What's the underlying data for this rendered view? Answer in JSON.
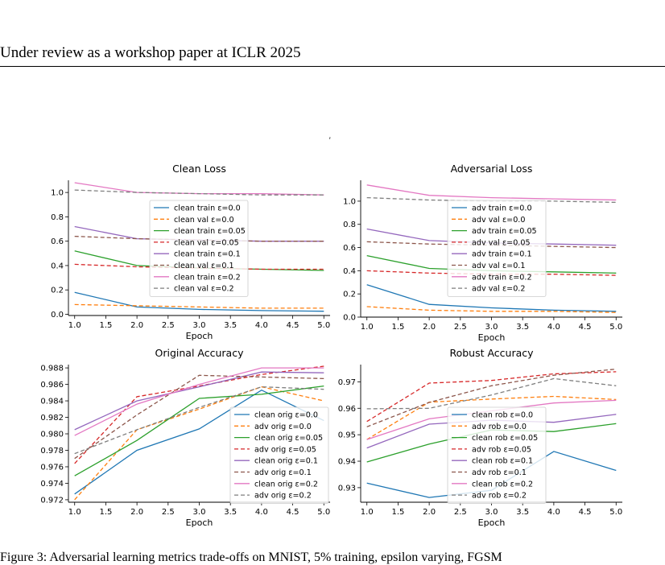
{
  "page": {
    "header": "Under review as a workshop paper at ICLR 2025",
    "caption": "Figure 3:  Adversarial learning metrics trade-offs on MNIST, 5% training, epsilon varying, FGSM"
  },
  "chart_data": [
    {
      "type": "line",
      "title": "Clean Loss",
      "xlabel": "Epoch",
      "x": [
        1,
        2,
        3,
        4,
        5
      ],
      "xlim": [
        0.9,
        5.1
      ],
      "xticks": [
        "1.0",
        "1.5",
        "2.0",
        "2.5",
        "3.0",
        "3.5",
        "4.0",
        "4.5",
        "5.0"
      ],
      "ylim": [
        -0.01,
        1.1
      ],
      "yticks": [
        "0.0",
        "0.2",
        "0.4",
        "0.6",
        "0.8",
        "1.0"
      ],
      "legend": "center",
      "series": [
        {
          "name": "clean train ε=0.0",
          "color": "#1f77b4",
          "dash": false,
          "values": [
            0.18,
            0.06,
            0.04,
            0.03,
            0.025
          ]
        },
        {
          "name": "clean val ε=0.0",
          "color": "#ff7f0e",
          "dash": true,
          "values": [
            0.08,
            0.07,
            0.06,
            0.05,
            0.05
          ]
        },
        {
          "name": "clean train ε=0.05",
          "color": "#2ca02c",
          "dash": false,
          "values": [
            0.52,
            0.4,
            0.38,
            0.37,
            0.36
          ]
        },
        {
          "name": "clean val ε=0.05",
          "color": "#d62728",
          "dash": true,
          "values": [
            0.41,
            0.39,
            0.38,
            0.37,
            0.37
          ]
        },
        {
          "name": "clean train ε=0.1",
          "color": "#9467bd",
          "dash": false,
          "values": [
            0.72,
            0.62,
            0.61,
            0.6,
            0.6
          ]
        },
        {
          "name": "clean val ε=0.1",
          "color": "#8c564b",
          "dash": true,
          "values": [
            0.64,
            0.62,
            0.61,
            0.6,
            0.6
          ]
        },
        {
          "name": "clean train ε=0.2",
          "color": "#e377c2",
          "dash": false,
          "values": [
            1.08,
            1.0,
            0.99,
            0.99,
            0.98
          ]
        },
        {
          "name": "clean val ε=0.2",
          "color": "#7f7f7f",
          "dash": true,
          "values": [
            1.02,
            1.0,
            0.99,
            0.98,
            0.98
          ]
        }
      ]
    },
    {
      "type": "line",
      "title": "Adversarial Loss",
      "xlabel": "Epoch",
      "x": [
        1,
        2,
        3,
        4,
        5
      ],
      "xlim": [
        0.9,
        5.1
      ],
      "xticks": [
        "1.0",
        "1.5",
        "2.0",
        "2.5",
        "3.0",
        "3.5",
        "4.0",
        "4.5",
        "5.0"
      ],
      "ylim": [
        0.0,
        1.18
      ],
      "yticks": [
        "0.0",
        "0.2",
        "0.4",
        "0.6",
        "0.8",
        "1.0"
      ],
      "legend": "center",
      "series": [
        {
          "name": "adv train ε=0.0",
          "color": "#1f77b4",
          "dash": false,
          "values": [
            0.28,
            0.11,
            0.08,
            0.06,
            0.05
          ]
        },
        {
          "name": "adv val ε=0.0",
          "color": "#ff7f0e",
          "dash": true,
          "values": [
            0.09,
            0.06,
            0.05,
            0.05,
            0.04
          ]
        },
        {
          "name": "adv train ε=0.05",
          "color": "#2ca02c",
          "dash": false,
          "values": [
            0.53,
            0.42,
            0.4,
            0.39,
            0.38
          ]
        },
        {
          "name": "adv val ε=0.05",
          "color": "#d62728",
          "dash": true,
          "values": [
            0.4,
            0.38,
            0.37,
            0.37,
            0.36
          ]
        },
        {
          "name": "adv train ε=0.1",
          "color": "#9467bd",
          "dash": false,
          "values": [
            0.76,
            0.66,
            0.64,
            0.63,
            0.62
          ]
        },
        {
          "name": "adv val ε=0.1",
          "color": "#8c564b",
          "dash": true,
          "values": [
            0.65,
            0.63,
            0.62,
            0.61,
            0.6
          ]
        },
        {
          "name": "adv train ε=0.2",
          "color": "#e377c2",
          "dash": false,
          "values": [
            1.14,
            1.05,
            1.03,
            1.02,
            1.01
          ]
        },
        {
          "name": "adv val ε=0.2",
          "color": "#7f7f7f",
          "dash": true,
          "values": [
            1.03,
            1.01,
            1.0,
            1.0,
            0.99
          ]
        }
      ]
    },
    {
      "type": "line",
      "title": "Original Accuracy",
      "xlabel": "Epoch",
      "x": [
        1,
        2,
        3,
        4,
        5
      ],
      "xlim": [
        0.9,
        5.1
      ],
      "xticks": [
        "1.0",
        "1.5",
        "2.0",
        "2.5",
        "3.0",
        "3.5",
        "4.0",
        "4.5",
        "5.0"
      ],
      "ylim": [
        0.9717,
        0.9884
      ],
      "yticks": [
        "0.972",
        "0.974",
        "0.976",
        "0.978",
        "0.980",
        "0.982",
        "0.984",
        "0.986",
        "0.988"
      ],
      "legend": "lower right",
      "series": [
        {
          "name": "clean orig ε=0.0",
          "color": "#1f77b4",
          "dash": false,
          "values": [
            0.9727,
            0.978,
            0.9806,
            0.9853,
            0.9816
          ]
        },
        {
          "name": "adv orig ε=0.0",
          "color": "#ff7f0e",
          "dash": true,
          "values": [
            0.972,
            0.9805,
            0.983,
            0.9857,
            0.984
          ]
        },
        {
          "name": "clean orig ε=0.05",
          "color": "#2ca02c",
          "dash": false,
          "values": [
            0.9749,
            0.9792,
            0.9843,
            0.9848,
            0.9858
          ]
        },
        {
          "name": "adv orig ε=0.05",
          "color": "#d62728",
          "dash": true,
          "values": [
            0.9764,
            0.9845,
            0.9858,
            0.9872,
            0.9882
          ]
        },
        {
          "name": "clean orig ε=0.1",
          "color": "#9467bd",
          "dash": false,
          "values": [
            0.9805,
            0.984,
            0.9857,
            0.9875,
            0.9874
          ]
        },
        {
          "name": "adv orig ε=0.1",
          "color": "#8c564b",
          "dash": true,
          "values": [
            0.977,
            0.9823,
            0.9871,
            0.9869,
            0.9867
          ]
        },
        {
          "name": "clean orig ε=0.2",
          "color": "#e377c2",
          "dash": false,
          "values": [
            0.9798,
            0.9836,
            0.986,
            0.988,
            0.988
          ]
        },
        {
          "name": "adv orig ε=0.2",
          "color": "#7f7f7f",
          "dash": true,
          "values": [
            0.9776,
            0.9805,
            0.9832,
            0.9857,
            0.9854
          ]
        }
      ]
    },
    {
      "type": "line",
      "title": "Robust Accuracy",
      "xlabel": "Epoch",
      "x": [
        1,
        2,
        3,
        4,
        5
      ],
      "xlim": [
        0.9,
        5.1
      ],
      "xticks": [
        "1.0",
        "1.5",
        "2.0",
        "2.5",
        "3.0",
        "3.5",
        "4.0",
        "4.5",
        "5.0"
      ],
      "ylim": [
        0.9245,
        0.9765
      ],
      "yticks": [
        "0.93",
        "0.94",
        "0.95",
        "0.96",
        "0.97"
      ],
      "legend": "lower center",
      "series": [
        {
          "name": "clean rob ε=0.0",
          "color": "#1f77b4",
          "dash": false,
          "values": [
            0.9317,
            0.9263,
            0.929,
            0.9437,
            0.9365
          ]
        },
        {
          "name": "adv rob ε=0.0",
          "color": "#ff7f0e",
          "dash": true,
          "values": [
            0.9482,
            0.9623,
            0.9635,
            0.9645,
            0.9633
          ]
        },
        {
          "name": "clean rob ε=0.05",
          "color": "#2ca02c",
          "dash": false,
          "values": [
            0.9397,
            0.9465,
            0.9518,
            0.9512,
            0.9542
          ]
        },
        {
          "name": "adv rob ε=0.05",
          "color": "#d62728",
          "dash": true,
          "values": [
            0.955,
            0.9695,
            0.9705,
            0.973,
            0.9738
          ]
        },
        {
          "name": "clean rob ε=0.1",
          "color": "#9467bd",
          "dash": false,
          "values": [
            0.945,
            0.954,
            0.9555,
            0.9547,
            0.9577
          ]
        },
        {
          "name": "adv rob ε=0.1",
          "color": "#8c564b",
          "dash": true,
          "values": [
            0.953,
            0.9622,
            0.9685,
            0.9725,
            0.9748
          ]
        },
        {
          "name": "clean rob ε=0.2",
          "color": "#e377c2",
          "dash": false,
          "values": [
            0.9482,
            0.956,
            0.959,
            0.962,
            0.963
          ]
        },
        {
          "name": "adv rob ε=0.2",
          "color": "#7f7f7f",
          "dash": true,
          "values": [
            0.9598,
            0.96,
            0.965,
            0.9712,
            0.9685
          ]
        }
      ]
    }
  ]
}
